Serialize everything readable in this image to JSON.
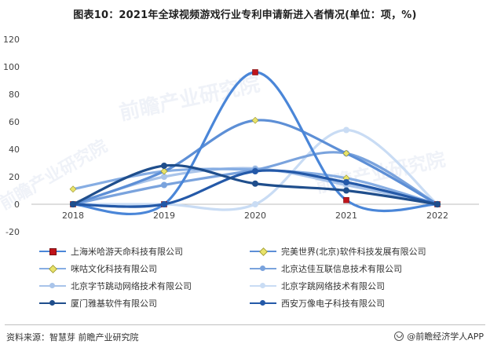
{
  "title": "图表10：2021年全球视频游戏行业专利申请新进入者情况(单位：项，%)",
  "footer": {
    "source": "资料来源：智慧芽 前瞻产业研究院",
    "brand": "@前瞻经济学人APP"
  },
  "watermark": "前瞻产业研究院",
  "chart_data": {
    "type": "line",
    "title": "图表10：2021年全球视频游戏行业专利申请新进入者情况(单位：项，%)",
    "x": [
      "2018",
      "2019",
      "2020",
      "2021",
      "2022"
    ],
    "ylim": [
      -20,
      120
    ],
    "yticks": [
      -20,
      0,
      20,
      40,
      60,
      80,
      100,
      120
    ],
    "smooth": true,
    "grid": false,
    "legend_position": "bottom",
    "series": [
      {
        "name": "上海米哈游天命科技有限公司",
        "values": [
          0,
          0,
          96,
          3,
          0
        ],
        "color": "#4a86d8",
        "marker": "square-red"
      },
      {
        "name": "完美世界(北京)软件科技发展有限公司",
        "values": [
          0,
          24,
          61,
          37,
          0
        ],
        "color": "#5d8fd6",
        "marker": "diamond-yellow"
      },
      {
        "name": "咪咕文化科技有限公司",
        "values": [
          11,
          24,
          25,
          19,
          0
        ],
        "color": "#86ade3",
        "marker": "diamond-yellow"
      },
      {
        "name": "北京达佳互联信息技术有限公司",
        "values": [
          0,
          14,
          25,
          37,
          0
        ],
        "color": "#7aa3dd",
        "marker": "circle"
      },
      {
        "name": "北京字节跳动网络技术有限公司",
        "values": [
          0,
          20,
          26,
          14,
          0
        ],
        "color": "#a9c4ea",
        "marker": "circle"
      },
      {
        "name": "北京字跳网络技术有限公司",
        "values": [
          0,
          0,
          0,
          54,
          0
        ],
        "color": "#c9dcf4",
        "marker": "circle"
      },
      {
        "name": "厦门雅基软件有限公司",
        "values": [
          0,
          28,
          15,
          10,
          0
        ],
        "color": "#1f4e8c",
        "marker": "circle"
      },
      {
        "name": "西安万像电子科技有限公司",
        "values": [
          0,
          0,
          24,
          16,
          0
        ],
        "color": "#2459a8",
        "marker": "circle"
      }
    ]
  }
}
